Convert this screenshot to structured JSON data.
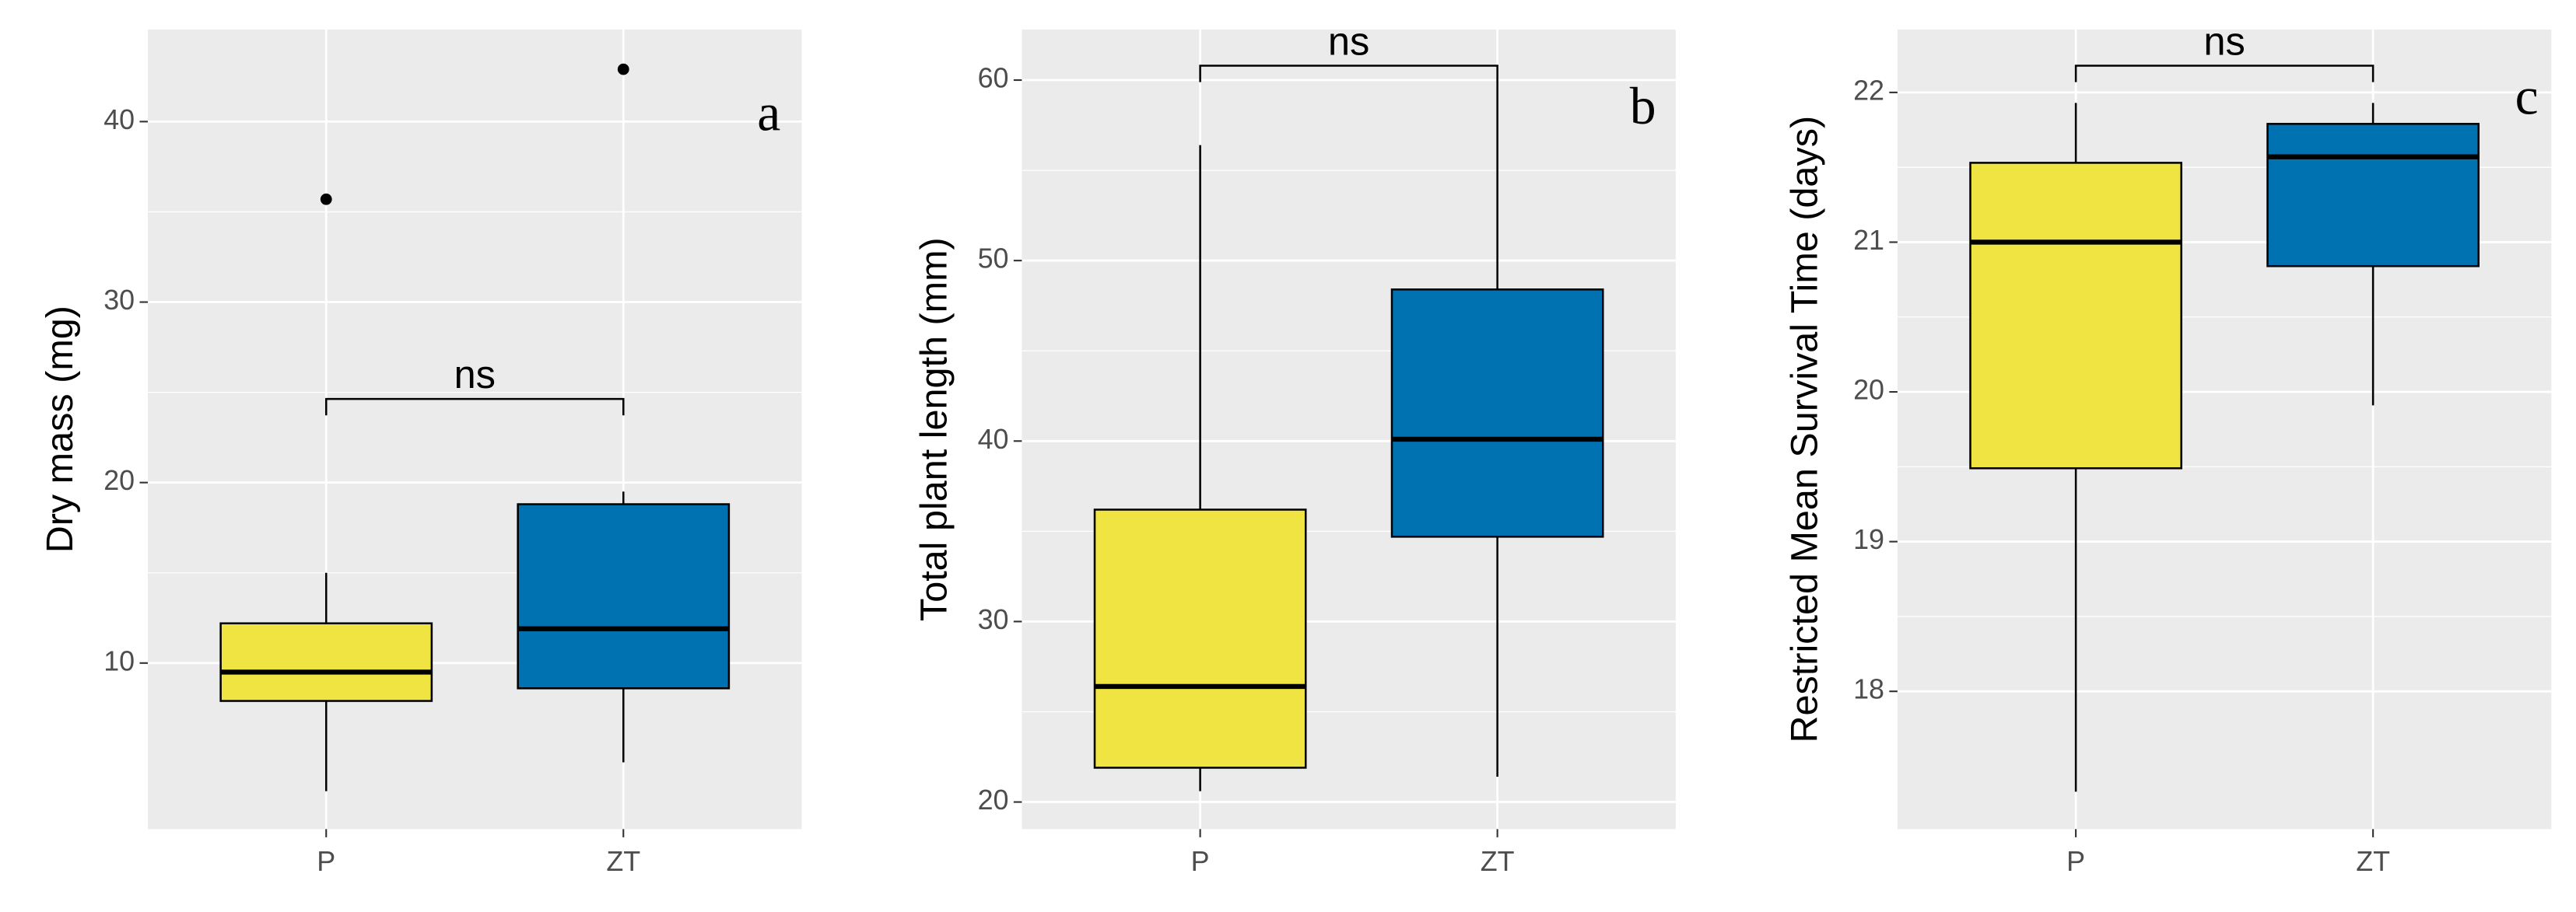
{
  "chart_data": [
    {
      "type": "box",
      "ylabel": "Dry mass (mg)",
      "panel_label": "a",
      "annotation": "ns",
      "categories": [
        "P",
        "ZT"
      ],
      "ylim": [
        0.8,
        45.1
      ],
      "yticks": [
        10,
        20,
        30,
        40
      ],
      "grid": true,
      "boxes": [
        {
          "color": "#F0E442",
          "whisker_low": 2.9,
          "q1": 7.9,
          "median": 9.5,
          "q3": 12.2,
          "whisker_high": 15.0,
          "outliers": [
            35.7
          ]
        },
        {
          "color": "#0072B2",
          "whisker_low": 4.5,
          "q1": 8.6,
          "median": 11.9,
          "q3": 18.8,
          "whisker_high": 19.5,
          "outliers": [
            42.9
          ]
        }
      ]
    },
    {
      "type": "box",
      "ylabel": "Total plant length (mm)",
      "panel_label": "b",
      "annotation": "ns",
      "categories": [
        "P",
        "ZT"
      ],
      "ylim": [
        18.5,
        62.8
      ],
      "yticks": [
        20,
        30,
        40,
        50,
        60
      ],
      "grid": true,
      "boxes": [
        {
          "color": "#F0E442",
          "whisker_low": 20.6,
          "q1": 21.9,
          "median": 26.4,
          "q3": 36.2,
          "whisker_high": 56.4,
          "outliers": []
        },
        {
          "color": "#0072B2",
          "whisker_low": 21.4,
          "q1": 34.7,
          "median": 40.1,
          "q3": 48.4,
          "whisker_high": 59.9,
          "outliers": []
        }
      ]
    },
    {
      "type": "box",
      "ylabel": "Restricted Mean Survival Time (days)",
      "panel_label": "c",
      "annotation": "ns",
      "categories": [
        "P",
        "ZT"
      ],
      "ylim": [
        17.08,
        22.42
      ],
      "yticks": [
        18,
        19,
        20,
        21,
        22
      ],
      "grid": true,
      "boxes": [
        {
          "color": "#F0E442",
          "whisker_low": 17.33,
          "q1": 19.49,
          "median": 21.0,
          "q3": 21.53,
          "whisker_high": 21.93,
          "outliers": []
        },
        {
          "color": "#0072B2",
          "whisker_low": 19.91,
          "q1": 20.84,
          "median": 21.57,
          "q3": 21.79,
          "whisker_high": 21.93,
          "outliers": []
        }
      ]
    }
  ]
}
